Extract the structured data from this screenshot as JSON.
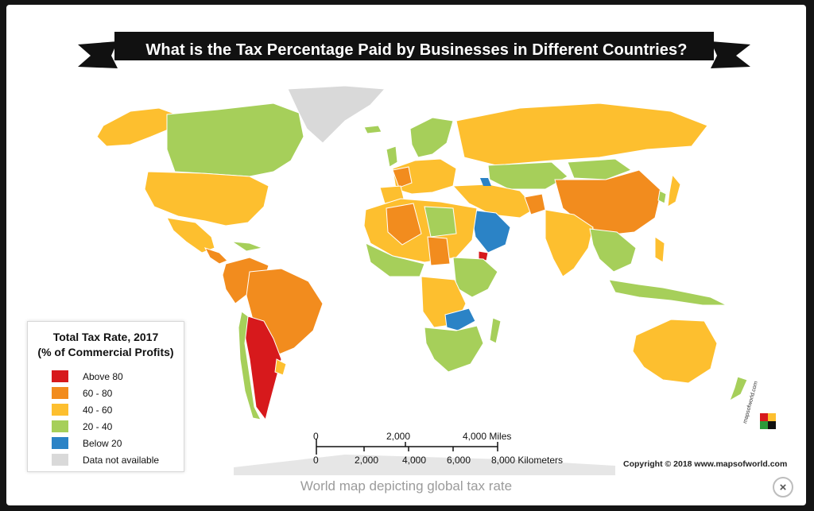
{
  "title": "What is the Tax Percentage Paid by Businesses in Different Countries?",
  "caption": "World map depicting global tax rate",
  "copyright": "Copyright © 2018 www.mapsofworld.com",
  "logo_text": "mapsofworld.com",
  "close_icon": "×",
  "legend": {
    "title_line1": "Total Tax Rate, 2017",
    "title_line2": "(% of Commercial Profits)",
    "items": [
      {
        "label": "Above 80",
        "color": "#d7191c"
      },
      {
        "label": "60 - 80",
        "color": "#f28c1e"
      },
      {
        "label": "40 - 60",
        "color": "#fdbf2f"
      },
      {
        "label": "20 - 40",
        "color": "#a6cf5a"
      },
      {
        "label": "Below 20",
        "color": "#2b83c6"
      },
      {
        "label": "Data not available",
        "color": "#d9d9d9"
      }
    ]
  },
  "scale_bar": {
    "miles_labels": [
      "0",
      "2,000",
      "4,000 Miles"
    ],
    "km_labels": [
      "0",
      "2,000",
      "4,000",
      "6,000",
      "8,000 Kilometers"
    ]
  },
  "colors": {
    "above_80": "#d7191c",
    "c60_80": "#f28c1e",
    "c40_60": "#fdbf2f",
    "c20_40": "#a6cf5a",
    "below_20": "#2b83c6",
    "na": "#d9d9d9"
  }
}
